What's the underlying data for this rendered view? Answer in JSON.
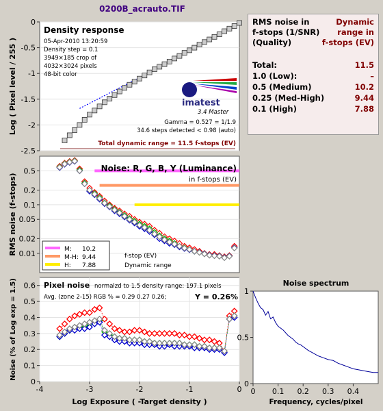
{
  "window_title": "0200B_acrauto.TIF",
  "stats": {
    "header_left": [
      "RMS noise in",
      "f-stops (1/SNR)",
      "(Quality)"
    ],
    "header_right": [
      "Dynamic",
      "range in",
      "f-stops (EV)"
    ],
    "rows": [
      {
        "label": "Total:",
        "value": "11.5"
      },
      {
        "label": "1.0   (Low):",
        "value": "–"
      },
      {
        "label": "0.5   (Medium)",
        "value": "10.2"
      },
      {
        "label": "0.25 (Med-High)",
        "value": "9.44"
      },
      {
        "label": "0.1   (High)",
        "value": "7.88"
      }
    ]
  },
  "chart_data": [
    {
      "type": "scatter",
      "title": "Density response",
      "info": [
        "05-Apr-2010 13:20:59",
        "Density step = 0.1",
        "3949×185 crop of",
        "4032×3024 pixels",
        "48-bit color"
      ],
      "ylabel": "Log ( Pixel level / 255 )",
      "xlim": [
        -4,
        0
      ],
      "ylim": [
        -2.5,
        0
      ],
      "yticks": [
        0,
        -0.5,
        -1,
        -1.5,
        -2,
        -2.5
      ],
      "logo_text": "imatest",
      "logo_subtext": "3.4  Master",
      "annotations": [
        "Gamma = 0.527 = 1/1.9",
        "34.6 steps detected < 0.98 (auto)"
      ],
      "footer": "Total dynamic range = 11.5 f-stops (EV)",
      "x": [
        -3.5,
        -3.4,
        -3.3,
        -3.2,
        -3.1,
        -3.0,
        -2.9,
        -2.8,
        -2.7,
        -2.6,
        -2.5,
        -2.4,
        -2.3,
        -2.2,
        -2.1,
        -2.0,
        -1.9,
        -1.8,
        -1.7,
        -1.6,
        -1.5,
        -1.4,
        -1.3,
        -1.2,
        -1.1,
        -1.0,
        -0.9,
        -0.8,
        -0.7,
        -0.6,
        -0.5,
        -0.4,
        -0.3,
        -0.2,
        -0.1,
        0.0
      ],
      "y": [
        -2.3,
        -2.2,
        -2.1,
        -2.0,
        -1.9,
        -1.8,
        -1.72,
        -1.64,
        -1.56,
        -1.49,
        -1.42,
        -1.35,
        -1.28,
        -1.22,
        -1.16,
        -1.1,
        -1.04,
        -0.98,
        -0.92,
        -0.87,
        -0.82,
        -0.77,
        -0.71,
        -0.66,
        -0.6,
        -0.55,
        -0.5,
        -0.44,
        -0.39,
        -0.34,
        -0.29,
        -0.24,
        -0.18,
        -0.13,
        -0.08,
        -0.02
      ],
      "fit_line": {
        "x": [
          -3.2,
          -1.8
        ],
        "y": [
          -1.68,
          -0.98
        ]
      }
    },
    {
      "type": "scatter",
      "title": "Noise: R, G, B, Y (Luminance)",
      "subtitle": "in f-stops (EV)",
      "ylabel": "RMS noise (f-stops)",
      "yscale": "log",
      "ylim": [
        0.004,
        1
      ],
      "yticks": [
        0.5,
        0.2,
        0.1,
        0.05,
        0.02,
        0.01
      ],
      "ytick_labels": [
        "0.5",
        "0.2",
        "0.1",
        "0.05",
        "0.02",
        "0.01"
      ],
      "reference_lines": [
        {
          "level": 0.5,
          "x_start": -2.9,
          "color": "#ff66ff"
        },
        {
          "level": 0.25,
          "x_start": -2.8,
          "color": "#ff9966"
        },
        {
          "level": 0.1,
          "x_start": -2.1,
          "color": "#ffee00"
        }
      ],
      "legend": [
        {
          "label": "M:",
          "value": "10.2",
          "color": "#ff66ff"
        },
        {
          "label": "M-H:",
          "value": "9.44",
          "color": "#ff9966"
        },
        {
          "label": "H:",
          "value": "7.88",
          "color": "#ffee00"
        }
      ],
      "legend_notes": [
        "f-stop (EV)",
        "Dynamic range"
      ],
      "x": [
        -3.6,
        -3.5,
        -3.4,
        -3.3,
        -3.2,
        -3.1,
        -3.0,
        -2.9,
        -2.8,
        -2.7,
        -2.6,
        -2.5,
        -2.4,
        -2.3,
        -2.2,
        -2.1,
        -2.0,
        -1.9,
        -1.8,
        -1.7,
        -1.6,
        -1.5,
        -1.4,
        -1.3,
        -1.2,
        -1.1,
        -1.0,
        -0.9,
        -0.8,
        -0.7,
        -0.6,
        -0.5,
        -0.4,
        -0.3,
        -0.2,
        -0.1
      ],
      "series": [
        {
          "name": "R",
          "color": "#ff0000",
          "values": [
            0.62,
            0.72,
            0.78,
            0.82,
            0.55,
            0.3,
            0.22,
            0.18,
            0.15,
            0.12,
            0.1,
            0.085,
            0.075,
            0.065,
            0.058,
            0.05,
            0.044,
            0.04,
            0.036,
            0.03,
            0.026,
            0.022,
            0.02,
            0.018,
            0.016,
            0.014,
            0.013,
            0.012,
            0.011,
            0.01,
            0.0095,
            0.0095,
            0.009,
            0.0085,
            0.009,
            0.014
          ]
        },
        {
          "name": "G",
          "color": "#00bb00",
          "values": [
            0.6,
            0.7,
            0.76,
            0.8,
            0.52,
            0.28,
            0.2,
            0.17,
            0.14,
            0.11,
            0.095,
            0.08,
            0.07,
            0.06,
            0.052,
            0.046,
            0.04,
            0.036,
            0.032,
            0.027,
            0.023,
            0.02,
            0.018,
            0.016,
            0.014,
            0.013,
            0.012,
            0.011,
            0.0105,
            0.0098,
            0.0092,
            0.009,
            0.0088,
            0.0082,
            0.0088,
            0.013
          ]
        },
        {
          "name": "B",
          "color": "#0000cc",
          "values": [
            0.58,
            0.68,
            0.74,
            0.78,
            0.5,
            0.27,
            0.19,
            0.16,
            0.13,
            0.105,
            0.09,
            0.075,
            0.065,
            0.056,
            0.048,
            0.042,
            0.036,
            0.032,
            0.028,
            0.024,
            0.02,
            0.018,
            0.016,
            0.015,
            0.0135,
            0.0125,
            0.0118,
            0.011,
            0.0105,
            0.0098,
            0.0092,
            0.009,
            0.0088,
            0.0082,
            0.0088,
            0.013
          ]
        },
        {
          "name": "Y",
          "color": "#888888",
          "values": [
            0.59,
            0.69,
            0.75,
            0.79,
            0.5,
            0.27,
            0.2,
            0.165,
            0.135,
            0.108,
            0.092,
            0.078,
            0.068,
            0.058,
            0.05,
            0.044,
            0.038,
            0.034,
            0.03,
            0.025,
            0.022,
            0.019,
            0.017,
            0.0155,
            0.014,
            0.0128,
            0.012,
            0.011,
            0.0104,
            0.0097,
            0.0091,
            0.0089,
            0.0087,
            0.0081,
            0.0087,
            0.0128
          ]
        }
      ]
    },
    {
      "type": "scatter",
      "title": "Pixel noise",
      "title_note": "normalzd to 1.5 density range: 197.1 pixels",
      "subtitle": "Avg. (zone 2-15) RGB % = 0.29  0.27  0.26;",
      "summary": "Y = 0.26%",
      "xlabel": "Log Exposure ( -Target density )",
      "ylabel": "Noise (% of Log exp = 1.5)",
      "xlim": [
        -4,
        0
      ],
      "ylim": [
        0,
        0.65
      ],
      "xticks": [
        -4,
        -3,
        -2,
        -1,
        0
      ],
      "yticks": [
        0.6,
        0.5,
        0.4,
        0.3,
        0.2,
        0.1,
        0
      ],
      "x": [
        -3.6,
        -3.5,
        -3.4,
        -3.3,
        -3.2,
        -3.1,
        -3.0,
        -2.9,
        -2.8,
        -2.7,
        -2.6,
        -2.5,
        -2.4,
        -2.3,
        -2.2,
        -2.1,
        -2.0,
        -1.9,
        -1.8,
        -1.7,
        -1.6,
        -1.5,
        -1.4,
        -1.3,
        -1.2,
        -1.1,
        -1.0,
        -0.9,
        -0.8,
        -0.7,
        -0.6,
        -0.5,
        -0.4,
        -0.3,
        -0.2,
        -0.1
      ],
      "series": [
        {
          "name": "R",
          "color": "#ff0000",
          "values": [
            0.33,
            0.36,
            0.39,
            0.41,
            0.42,
            0.43,
            0.43,
            0.45,
            0.46,
            0.39,
            0.36,
            0.33,
            0.32,
            0.31,
            0.31,
            0.32,
            0.32,
            0.31,
            0.3,
            0.3,
            0.3,
            0.3,
            0.3,
            0.3,
            0.29,
            0.29,
            0.28,
            0.28,
            0.27,
            0.26,
            0.26,
            0.25,
            0.24,
            0.19,
            0.41,
            0.44
          ]
        },
        {
          "name": "G",
          "color": "#00bb00",
          "values": [
            0.28,
            0.3,
            0.32,
            0.33,
            0.34,
            0.35,
            0.36,
            0.37,
            0.38,
            0.31,
            0.29,
            0.28,
            0.27,
            0.27,
            0.26,
            0.26,
            0.26,
            0.25,
            0.25,
            0.24,
            0.24,
            0.24,
            0.24,
            0.24,
            0.24,
            0.23,
            0.23,
            0.23,
            0.22,
            0.22,
            0.21,
            0.21,
            0.21,
            0.19,
            0.39,
            0.41
          ]
        },
        {
          "name": "B",
          "color": "#0000cc",
          "values": [
            0.28,
            0.3,
            0.32,
            0.32,
            0.33,
            0.33,
            0.34,
            0.36,
            0.37,
            0.29,
            0.28,
            0.26,
            0.25,
            0.25,
            0.24,
            0.24,
            0.24,
            0.23,
            0.23,
            0.23,
            0.22,
            0.22,
            0.23,
            0.22,
            0.22,
            0.22,
            0.22,
            0.21,
            0.21,
            0.21,
            0.2,
            0.2,
            0.2,
            0.18,
            0.39,
            0.4
          ]
        },
        {
          "name": "Y",
          "color": "#888888",
          "values": [
            0.29,
            0.31,
            0.33,
            0.34,
            0.35,
            0.36,
            0.37,
            0.38,
            0.39,
            0.32,
            0.3,
            0.28,
            0.27,
            0.27,
            0.26,
            0.26,
            0.26,
            0.25,
            0.25,
            0.24,
            0.24,
            0.24,
            0.24,
            0.24,
            0.24,
            0.23,
            0.23,
            0.23,
            0.22,
            0.22,
            0.21,
            0.21,
            0.21,
            0.19,
            0.39,
            0.41
          ]
        }
      ]
    },
    {
      "type": "line",
      "title": "Noise spectrum",
      "xlabel": "Frequency, cycles/pixel",
      "xlim": [
        0,
        0.5
      ],
      "ylim": [
        0,
        1
      ],
      "xticks": [
        0,
        0.1,
        0.2,
        0.3,
        0.4
      ],
      "yticks": [
        1,
        0.5,
        0
      ],
      "x": [
        0,
        0.01,
        0.02,
        0.03,
        0.04,
        0.05,
        0.06,
        0.07,
        0.08,
        0.09,
        0.1,
        0.11,
        0.12,
        0.13,
        0.14,
        0.15,
        0.16,
        0.17,
        0.18,
        0.19,
        0.2,
        0.22,
        0.24,
        0.26,
        0.28,
        0.3,
        0.32,
        0.34,
        0.36,
        0.38,
        0.4,
        0.42,
        0.44,
        0.46,
        0.48,
        0.5
      ],
      "y": [
        1.0,
        0.93,
        0.87,
        0.82,
        0.8,
        0.74,
        0.78,
        0.7,
        0.72,
        0.66,
        0.62,
        0.6,
        0.58,
        0.55,
        0.52,
        0.5,
        0.48,
        0.45,
        0.43,
        0.42,
        0.4,
        0.36,
        0.33,
        0.3,
        0.28,
        0.26,
        0.25,
        0.22,
        0.2,
        0.18,
        0.16,
        0.15,
        0.14,
        0.13,
        0.12,
        0.12
      ]
    }
  ]
}
